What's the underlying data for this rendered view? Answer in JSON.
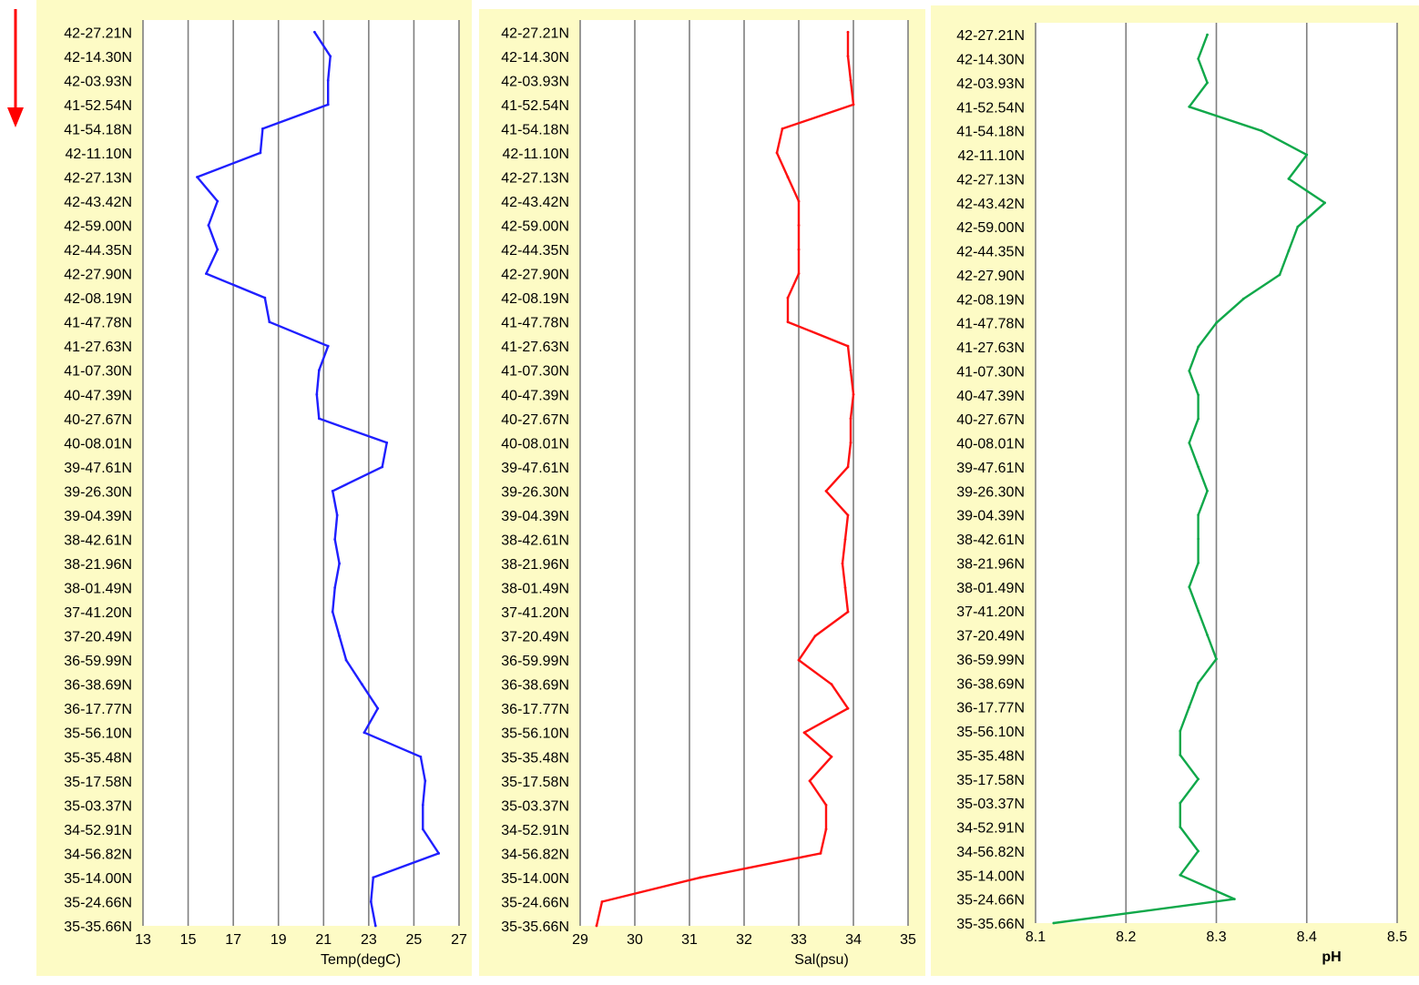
{
  "colors": {
    "panel_background": "#fdfbc5",
    "plot_background": "#ffffff",
    "gridline": "#7f7f7f",
    "arrow": "#ff0000"
  },
  "direction_arrow_icon": "down-arrow-icon",
  "latitude_labels": [
    "42-27.21N",
    "42-14.30N",
    "42-03.93N",
    "41-52.54N",
    "41-54.18N",
    "42-11.10N",
    "42-27.13N",
    "42-43.42N",
    "42-59.00N",
    "42-44.35N",
    "42-27.90N",
    "42-08.19N",
    "41-47.78N",
    "41-27.63N",
    "41-07.30N",
    "40-47.39N",
    "40-27.67N",
    "40-08.01N",
    "39-47.61N",
    "39-26.30N",
    "39-04.39N",
    "38-42.61N",
    "38-21.96N",
    "38-01.49N",
    "37-41.20N",
    "37-20.49N",
    "36-59.99N",
    "36-38.69N",
    "36-17.77N",
    "35-56.10N",
    "35-35.48N",
    "35-17.58N",
    "35-03.37N",
    "34-52.91N",
    "34-56.82N",
    "35-14.00N",
    "35-24.66N",
    "35-35.66N"
  ],
  "chart_data": [
    {
      "type": "line",
      "orientation": "vertical-profile",
      "xlabel": "Temp(degC)",
      "xlim": [
        13,
        27
      ],
      "xticks": [
        13,
        15,
        17,
        19,
        21,
        23,
        25,
        27
      ],
      "grid": "vertical",
      "color": "#1f1fff",
      "series": [
        {
          "y": [
            "42-27.21N",
            "42-14.30N",
            "42-03.93N",
            "41-52.54N",
            "41-54.18N",
            "42-11.10N",
            "42-27.13N",
            "42-43.42N",
            "42-59.00N",
            "42-44.35N",
            "42-27.90N",
            "42-08.19N",
            "41-47.78N",
            "41-27.63N",
            "41-07.30N",
            "40-47.39N",
            "40-27.67N",
            "40-08.01N",
            "39-47.61N",
            "39-26.30N",
            "39-04.39N",
            "38-42.61N",
            "38-21.96N",
            "38-01.49N",
            "37-41.20N",
            "37-20.49N",
            "36-59.99N",
            "36-38.69N",
            "36-17.77N",
            "35-56.10N",
            "35-35.48N",
            "35-17.58N",
            "35-03.37N",
            "34-52.91N",
            "34-56.82N",
            "35-14.00N",
            "35-24.66N",
            "35-35.66N"
          ],
          "values": [
            20.6,
            21.3,
            21.2,
            21.2,
            18.3,
            18.2,
            15.4,
            16.3,
            15.9,
            16.3,
            15.8,
            18.4,
            18.6,
            21.2,
            20.8,
            20.7,
            20.8,
            23.8,
            23.6,
            21.4,
            21.6,
            21.5,
            21.7,
            21.5,
            21.4,
            21.7,
            22.0,
            22.7,
            23.4,
            22.8,
            25.3,
            25.5,
            25.4,
            25.4,
            26.1,
            23.2,
            23.1,
            23.3
          ]
        }
      ]
    },
    {
      "type": "line",
      "orientation": "vertical-profile",
      "xlabel": "Sal(psu)",
      "xlim": [
        29,
        35
      ],
      "xticks": [
        29,
        30,
        31,
        32,
        33,
        34,
        35
      ],
      "grid": "vertical",
      "color": "#ff1010",
      "series": [
        {
          "y": [
            "42-27.21N",
            "42-14.30N",
            "42-03.93N",
            "41-52.54N",
            "41-54.18N",
            "42-11.10N",
            "42-27.13N",
            "42-43.42N",
            "42-59.00N",
            "42-44.35N",
            "42-27.90N",
            "42-08.19N",
            "41-47.78N",
            "41-27.63N",
            "41-07.30N",
            "40-47.39N",
            "40-27.67N",
            "40-08.01N",
            "39-47.61N",
            "39-26.30N",
            "39-04.39N",
            "38-42.61N",
            "38-21.96N",
            "38-01.49N",
            "37-41.20N",
            "37-20.49N",
            "36-59.99N",
            "36-38.69N",
            "36-17.77N",
            "35-56.10N",
            "35-35.48N",
            "35-17.58N",
            "35-03.37N",
            "34-52.91N",
            "34-56.82N",
            "35-14.00N",
            "35-24.66N",
            "35-35.66N"
          ],
          "values": [
            33.9,
            33.9,
            33.95,
            34.0,
            32.7,
            32.6,
            32.8,
            33.0,
            33.0,
            33.0,
            33.0,
            32.8,
            32.8,
            33.9,
            33.95,
            34.0,
            33.95,
            33.95,
            33.9,
            33.5,
            33.9,
            33.85,
            33.8,
            33.85,
            33.9,
            33.3,
            33.0,
            33.6,
            33.9,
            33.1,
            33.6,
            33.2,
            33.5,
            33.5,
            33.4,
            31.2,
            29.4,
            29.3
          ]
        }
      ]
    },
    {
      "type": "line",
      "orientation": "vertical-profile",
      "xlabel": "pH",
      "xlim": [
        8.1,
        8.5
      ],
      "xticks": [
        8.1,
        8.2,
        8.3,
        8.4,
        8.5
      ],
      "grid": "vertical",
      "color": "#10a84a",
      "series": [
        {
          "y": [
            "42-27.21N",
            "42-14.30N",
            "42-03.93N",
            "41-52.54N",
            "41-54.18N",
            "42-11.10N",
            "42-27.13N",
            "42-43.42N",
            "42-59.00N",
            "42-44.35N",
            "42-27.90N",
            "42-08.19N",
            "41-47.78N",
            "41-27.63N",
            "41-07.30N",
            "40-47.39N",
            "40-27.67N",
            "40-08.01N",
            "39-47.61N",
            "39-26.30N",
            "39-04.39N",
            "38-42.61N",
            "38-21.96N",
            "38-01.49N",
            "37-41.20N",
            "37-20.49N",
            "36-59.99N",
            "36-38.69N",
            "36-17.77N",
            "35-56.10N",
            "35-35.48N",
            "35-17.58N",
            "35-03.37N",
            "34-52.91N",
            "34-56.82N",
            "35-14.00N",
            "35-24.66N",
            "35-35.66N"
          ],
          "values": [
            8.29,
            8.28,
            8.29,
            8.27,
            8.35,
            8.4,
            8.38,
            8.42,
            8.39,
            8.38,
            8.37,
            8.33,
            8.3,
            8.28,
            8.27,
            8.28,
            8.28,
            8.27,
            8.28,
            8.29,
            8.28,
            8.28,
            8.28,
            8.27,
            8.28,
            8.29,
            8.3,
            8.28,
            8.27,
            8.26,
            8.26,
            8.28,
            8.26,
            8.26,
            8.28,
            8.26,
            8.32,
            8.12
          ]
        }
      ]
    }
  ]
}
